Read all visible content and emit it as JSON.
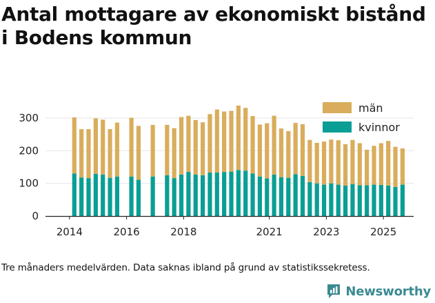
{
  "chart_data": {
    "type": "bar",
    "stacked": true,
    "title": "Antal mottagare av ekonomiskt bistånd i Bodens kommun",
    "xlabel": "",
    "ylabel": "",
    "ylim": [
      0,
      340
    ],
    "yticks": [
      0,
      100,
      200,
      300
    ],
    "xticks": [
      {
        "label": "2014",
        "index": 0
      },
      {
        "label": "2016",
        "index": 8
      },
      {
        "label": "2018",
        "index": 16
      },
      {
        "label": "2021",
        "index": 28
      },
      {
        "label": "2023",
        "index": 36
      },
      {
        "label": "2025",
        "index": 44
      }
    ],
    "legend": [
      "män",
      "kvinnor"
    ],
    "legend_position": "top-right",
    "series": [
      {
        "name": "kvinnor",
        "color": "#0a9e94",
        "values": [
          130,
          118,
          116,
          129,
          127,
          117,
          121,
          null,
          121,
          111,
          null,
          121,
          null,
          125,
          116,
          127,
          135,
          127,
          125,
          133,
          133,
          135,
          136,
          141,
          139,
          130,
          121,
          115,
          127,
          119,
          117,
          128,
          123,
          104,
          100,
          96,
          100,
          96,
          93,
          98,
          94,
          94,
          96,
          95,
          93,
          89,
          96
        ]
      },
      {
        "name": "män",
        "color": "#d9ad5c",
        "values": [
          172,
          148,
          150,
          170,
          168,
          149,
          165,
          null,
          180,
          165,
          null,
          158,
          null,
          154,
          153,
          176,
          172,
          167,
          162,
          179,
          193,
          185,
          186,
          197,
          192,
          176,
          159,
          169,
          180,
          149,
          143,
          157,
          158,
          129,
          124,
          132,
          134,
          136,
          127,
          135,
          129,
          109,
          119,
          128,
          137,
          123,
          111
        ]
      }
    ]
  },
  "footnote": "Tre månaders medelvärden. Data saknas ibland på grund av statistikssekretess.",
  "brand": "Newsworthy"
}
